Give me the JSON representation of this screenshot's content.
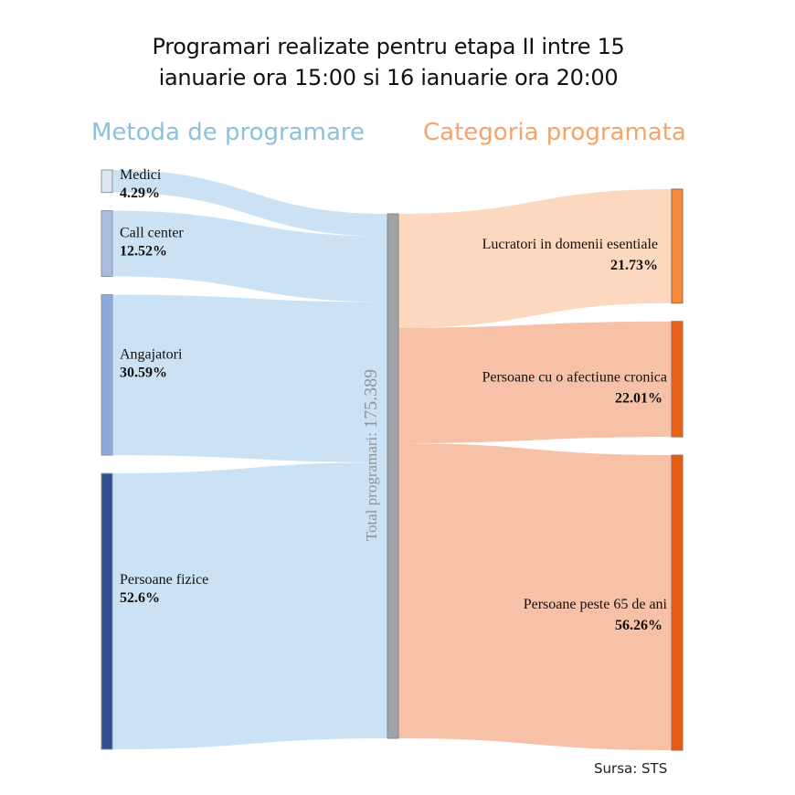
{
  "title_line1": "Programari realizate pentru etapa II intre 15",
  "title_line2": "ianuarie ora 15:00 si 16 ianuarie ora 20:00",
  "source": "Sursa: STS",
  "chart_data": {
    "type": "sankey",
    "left_header": "Metoda de programare",
    "right_header": "Categoria programata",
    "center_label": "Total programari: 175.389",
    "left_nodes": [
      {
        "name": "Medici",
        "value": 4.29,
        "label": "4.29%",
        "color": "#dfe5ee"
      },
      {
        "name": "Call center",
        "value": 12.52,
        "label": "12.52%",
        "color": "#a9bde0"
      },
      {
        "name": "Angajatori",
        "value": 30.59,
        "label": "30.59%",
        "color": "#8eaadb"
      },
      {
        "name": "Persoane fizice",
        "value": 52.6,
        "label": "52.6%",
        "color": "#2f4f8f"
      }
    ],
    "right_nodes": [
      {
        "name": "Lucratori in domenii esentiale",
        "value": 21.73,
        "label": "21.73%",
        "color": "#f58b3a",
        "flow_color": "#fbd6bb"
      },
      {
        "name": "Persoane cu o afectiune cronica",
        "value": 22.01,
        "label": "22.01%",
        "color": "#e8621a",
        "flow_color": "#f6bea2"
      },
      {
        "name": "Persoane peste 65 de ani",
        "value": 56.26,
        "label": "56.26%",
        "color": "#e65c14",
        "flow_color": "#f6bea2"
      }
    ],
    "center_color": "#9ea3a8",
    "left_flow_color": "#c8e0f3",
    "left_header_color": "#8ec0d8",
    "right_header_color": "#f4a46a"
  }
}
